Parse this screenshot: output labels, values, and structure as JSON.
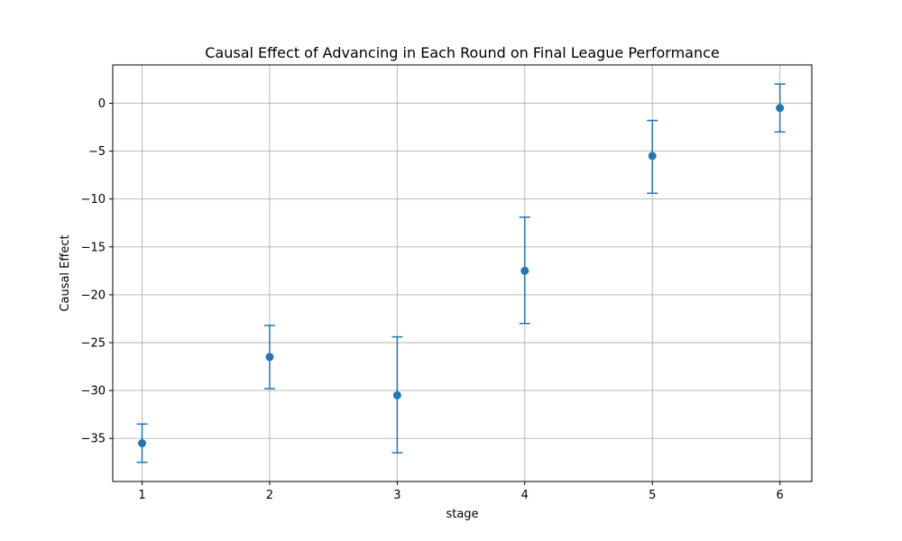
{
  "chart_data": {
    "type": "scatter",
    "title": "Causal Effect of Advancing in Each Round on Final League Performance",
    "xlabel": "stage",
    "ylabel": "Causal Effect",
    "x": [
      1,
      2,
      3,
      4,
      5,
      6
    ],
    "y": [
      -35.5,
      -26.5,
      -30.5,
      -17.5,
      -5.5,
      -0.5
    ],
    "y_lower": [
      -37.5,
      -29.8,
      -36.5,
      -23.0,
      -9.4,
      -3.0
    ],
    "y_upper": [
      -33.5,
      -23.2,
      -24.4,
      -11.9,
      -1.8,
      2.0
    ],
    "xlim": [
      0.77,
      6.25
    ],
    "ylim": [
      -39.5,
      4.0
    ],
    "xticks": [
      1,
      2,
      3,
      4,
      5,
      6
    ],
    "yticks": [
      0,
      -5,
      -10,
      -15,
      -20,
      -25,
      -30,
      -35
    ],
    "ytick_labels": [
      "0",
      "−5",
      "−10",
      "−15",
      "−20",
      "−25",
      "−30",
      "−35"
    ],
    "grid": true,
    "color": "#1f77b4"
  }
}
